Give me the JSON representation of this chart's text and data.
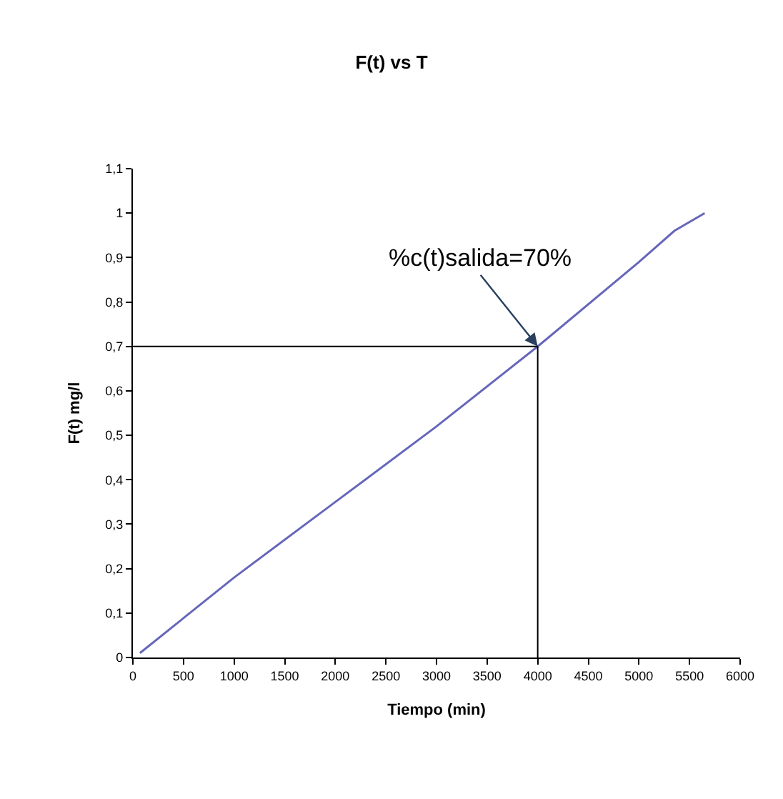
{
  "chart_data": {
    "type": "line",
    "title": "F(t) vs T",
    "xlabel": "Tiempo (min)",
    "ylabel": "F(t) mg/l",
    "x": [
      70,
      1000,
      2000,
      3000,
      4000,
      5000,
      5350,
      5650
    ],
    "series": [
      {
        "color": "#6666bb",
        "values": [
          0.01,
          0.18,
          0.35,
          0.52,
          0.7,
          0.89,
          0.96,
          1.0
        ]
      }
    ],
    "xlim": [
      0,
      6000
    ],
    "xticks": [
      0,
      500,
      1000,
      1500,
      2000,
      2500,
      3000,
      3500,
      4000,
      4500,
      5000,
      5500,
      6000
    ],
    "ylim": [
      0,
      1.1
    ],
    "yticks": [
      0,
      {
        "value": 0.1,
        "label": "0,1"
      },
      {
        "value": 0.2,
        "label": "0,2"
      },
      {
        "value": 0.3,
        "label": "0,3"
      },
      {
        "value": 0.4,
        "label": "0,4"
      },
      {
        "value": 0.5,
        "label": "0,5"
      },
      {
        "value": 0.6,
        "label": "0,6"
      },
      {
        "value": 0.7,
        "label": "0,7"
      },
      {
        "value": 0.8,
        "label": "0,8"
      },
      {
        "value": 0.9,
        "label": "0,9"
      },
      1,
      {
        "value": 1.1,
        "label": "1,1"
      }
    ],
    "ref_lines": [
      {
        "axis": "y",
        "value": 0.7,
        "color": "#000000"
      },
      {
        "axis": "x",
        "value": 4000,
        "color": "#000000"
      }
    ],
    "annotations": [
      {
        "text": "%c(t)salida=70%",
        "x": 4000,
        "y": 0.7
      }
    ],
    "marker": "none",
    "line_style": "solid"
  }
}
